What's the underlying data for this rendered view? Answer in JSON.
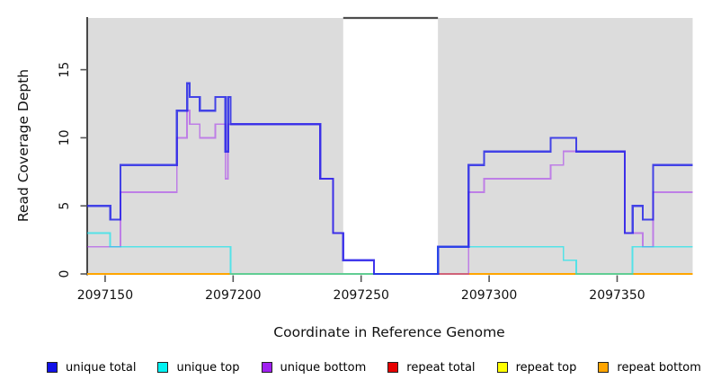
{
  "chart_data": {
    "type": "line",
    "subtype": "step-coverage",
    "xlabel": "Coordinate in Reference Genome",
    "ylabel": "Read Coverage Depth",
    "xlim": [
      2097143,
      2097379.5
    ],
    "ylim": [
      0,
      18.8
    ],
    "grid": false,
    "legend_position": "bottom",
    "background_color": "#ffffff",
    "panel_shaded_color": "#dcdcdc",
    "x_ticks": [
      {
        "value": 2097150,
        "label": "2097150"
      },
      {
        "value": 2097200,
        "label": "2097200"
      },
      {
        "value": 2097250,
        "label": "2097250"
      },
      {
        "value": 2097300,
        "label": "2097300"
      },
      {
        "value": 2097350,
        "label": "2097350"
      }
    ],
    "y_ticks": [
      {
        "value": 0,
        "label": "0"
      },
      {
        "value": 5,
        "label": "5"
      },
      {
        "value": 10,
        "label": "10"
      },
      {
        "value": 15,
        "label": "15"
      }
    ],
    "shaded_regions": [
      {
        "from": 2097143,
        "to": 2097243
      },
      {
        "from": 2097280,
        "to": 2097379.5
      }
    ],
    "unshaded_gap": {
      "from": 2097243,
      "to": 2097280,
      "top_border_color": "#4d4d4d"
    },
    "series": [
      {
        "name": "repeat total",
        "color": "#e00000",
        "opacity": 1,
        "width": 2,
        "points": [
          [
            2097143,
            0
          ]
        ]
      },
      {
        "name": "repeat top",
        "color": "#ffff00",
        "opacity": 1,
        "width": 2,
        "points": [
          [
            2097143,
            0
          ]
        ]
      },
      {
        "name": "repeat bottom",
        "color": "#ffa500",
        "opacity": 1,
        "width": 2.2,
        "points": [
          [
            2097143,
            0
          ]
        ]
      },
      {
        "name": "unique bottom",
        "color": "#a020f0",
        "opacity": 0.5,
        "width": 1.8,
        "points": [
          [
            2097143,
            2
          ],
          [
            2097156,
            6
          ],
          [
            2097178,
            10
          ],
          [
            2097182,
            12
          ],
          [
            2097183,
            11
          ],
          [
            2097187,
            10
          ],
          [
            2097193,
            11
          ],
          [
            2097197,
            7
          ],
          [
            2097198,
            11
          ],
          [
            2097234,
            7
          ],
          [
            2097239,
            3
          ],
          [
            2097243,
            1
          ],
          [
            2097255,
            0
          ],
          [
            2097292,
            6
          ],
          [
            2097298,
            7
          ],
          [
            2097324,
            8
          ],
          [
            2097329,
            9
          ],
          [
            2097353,
            3
          ],
          [
            2097360,
            2
          ],
          [
            2097364,
            6
          ]
        ]
      },
      {
        "name": "unique top",
        "color": "#00e5ee",
        "opacity": 0.62,
        "width": 1.8,
        "points": [
          [
            2097143,
            3
          ],
          [
            2097152,
            2
          ],
          [
            2097199,
            0
          ],
          [
            2097280,
            2
          ],
          [
            2097329,
            1
          ],
          [
            2097334,
            0
          ],
          [
            2097356,
            2
          ]
        ]
      },
      {
        "name": "unique total",
        "color": "#1c1ce8",
        "opacity": 0.8,
        "width": 2.3,
        "points": [
          [
            2097143,
            5
          ],
          [
            2097152,
            4
          ],
          [
            2097156,
            8
          ],
          [
            2097178,
            12
          ],
          [
            2097182,
            14
          ],
          [
            2097183,
            13
          ],
          [
            2097187,
            12
          ],
          [
            2097193,
            13
          ],
          [
            2097197,
            9
          ],
          [
            2097198,
            13
          ],
          [
            2097199,
            11
          ],
          [
            2097234,
            7
          ],
          [
            2097239,
            3
          ],
          [
            2097243,
            1
          ],
          [
            2097255,
            0
          ],
          [
            2097280,
            2
          ],
          [
            2097292,
            8
          ],
          [
            2097298,
            9
          ],
          [
            2097324,
            10
          ],
          [
            2097334,
            9
          ],
          [
            2097353,
            3
          ],
          [
            2097356,
            5
          ],
          [
            2097360,
            4
          ],
          [
            2097364,
            8
          ]
        ]
      }
    ],
    "legend": [
      {
        "label": "unique total",
        "color": "#1111e8"
      },
      {
        "label": "unique top",
        "color": "#00f2f2"
      },
      {
        "label": "unique bottom",
        "color": "#a020f0"
      },
      {
        "label": "repeat total",
        "color": "#e60000"
      },
      {
        "label": "repeat top",
        "color": "#ffff00"
      },
      {
        "label": "repeat bottom",
        "color": "#ffa500"
      }
    ]
  }
}
